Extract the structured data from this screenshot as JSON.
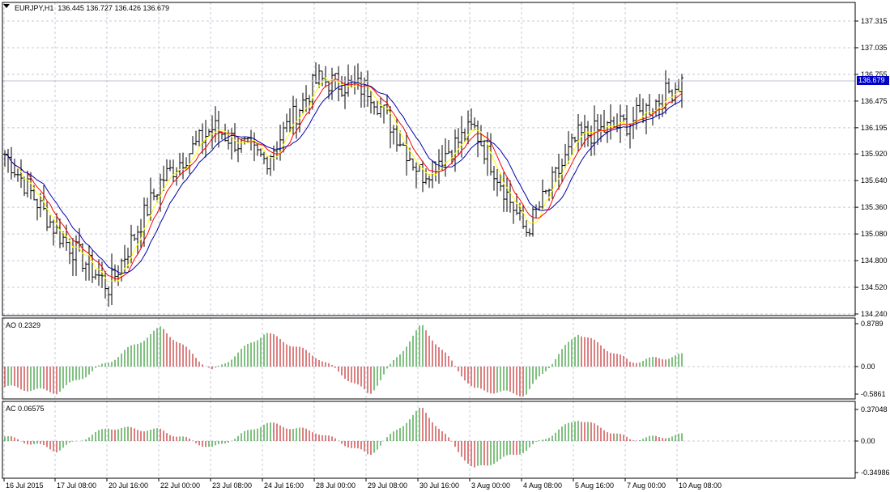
{
  "header": {
    "symbol": "EURJPY,H1",
    "ohlc": "136.445 136.727 136.426 136.679",
    "current_price": "136.679"
  },
  "ao": {
    "label": "AO 0.2329",
    "ticks": [
      "0.8789",
      "0.00",
      "-0.5861"
    ]
  },
  "ac": {
    "label": "AC 0.06575",
    "ticks": [
      "0.37048",
      "0.00",
      "-0.34986"
    ]
  },
  "price_ticks": [
    "137.315",
    "137.035",
    "136.755",
    "136.475",
    "136.195",
    "135.920",
    "135.640",
    "135.360",
    "135.080",
    "134.800",
    "134.520",
    "134.240"
  ],
  "time_ticks": [
    "16 Jul 2015",
    "17 Jul 08:00",
    "20 Jul 16:00",
    "22 Jul 00:00",
    "23 Jul 08:00",
    "24 Jul 16:00",
    "28 Jul 00:00",
    "29 Jul 08:00",
    "30 Jul 16:00",
    "3 Aug 00:00",
    "4 Aug 08:00",
    "5 Aug 16:00",
    "7 Aug 00:00",
    "10 Aug 08:00"
  ],
  "colors": {
    "bars": "#000000",
    "ma_fast": "#ffff00",
    "ma_mid": "#ff0000",
    "ma_slow": "#0000aa",
    "ao_up": "#008000",
    "ao_down": "#b40000",
    "grid": "#c8c8d8",
    "price_tag": "#0000c8"
  },
  "chart_data": [
    {
      "type": "bar",
      "title": "EURJPY,H1",
      "ylim": [
        134.24,
        137.315
      ],
      "x": [
        "16 Jul 2015",
        "17 Jul 08:00",
        "20 Jul 16:00",
        "22 Jul 00:00",
        "23 Jul 08:00",
        "24 Jul 16:00",
        "28 Jul 00:00",
        "29 Jul 08:00",
        "30 Jul 16:00",
        "3 Aug 00:00",
        "4 Aug 08:00",
        "5 Aug 16:00",
        "7 Aug 00:00",
        "10 Aug 08:00"
      ],
      "series": [
        {
          "values": [
            135.92,
            135.1,
            134.52,
            135.64,
            136.2,
            135.85,
            136.7,
            136.6,
            135.7,
            136.2,
            135.1,
            136.1,
            136.25,
            136.68
          ]
        }
      ]
    },
    {
      "type": "bar",
      "title": "AO 0.2329",
      "ylim": [
        -0.5861,
        0.8789
      ],
      "series": [
        {
          "values": [
            -0.4,
            -0.5,
            0.1,
            0.8,
            -0.1,
            0.7,
            0.2,
            -0.55,
            0.85,
            -0.45,
            -0.55,
            0.7,
            0.1,
            0.23
          ]
        }
      ]
    },
    {
      "type": "bar",
      "title": "AC 0.06575",
      "ylim": [
        -0.34986,
        0.37048
      ],
      "series": [
        {
          "values": [
            0.05,
            -0.1,
            0.15,
            0.12,
            -0.08,
            0.2,
            0.1,
            -0.15,
            0.37,
            -0.3,
            -0.1,
            0.25,
            0.02,
            0.06575
          ]
        }
      ]
    }
  ]
}
